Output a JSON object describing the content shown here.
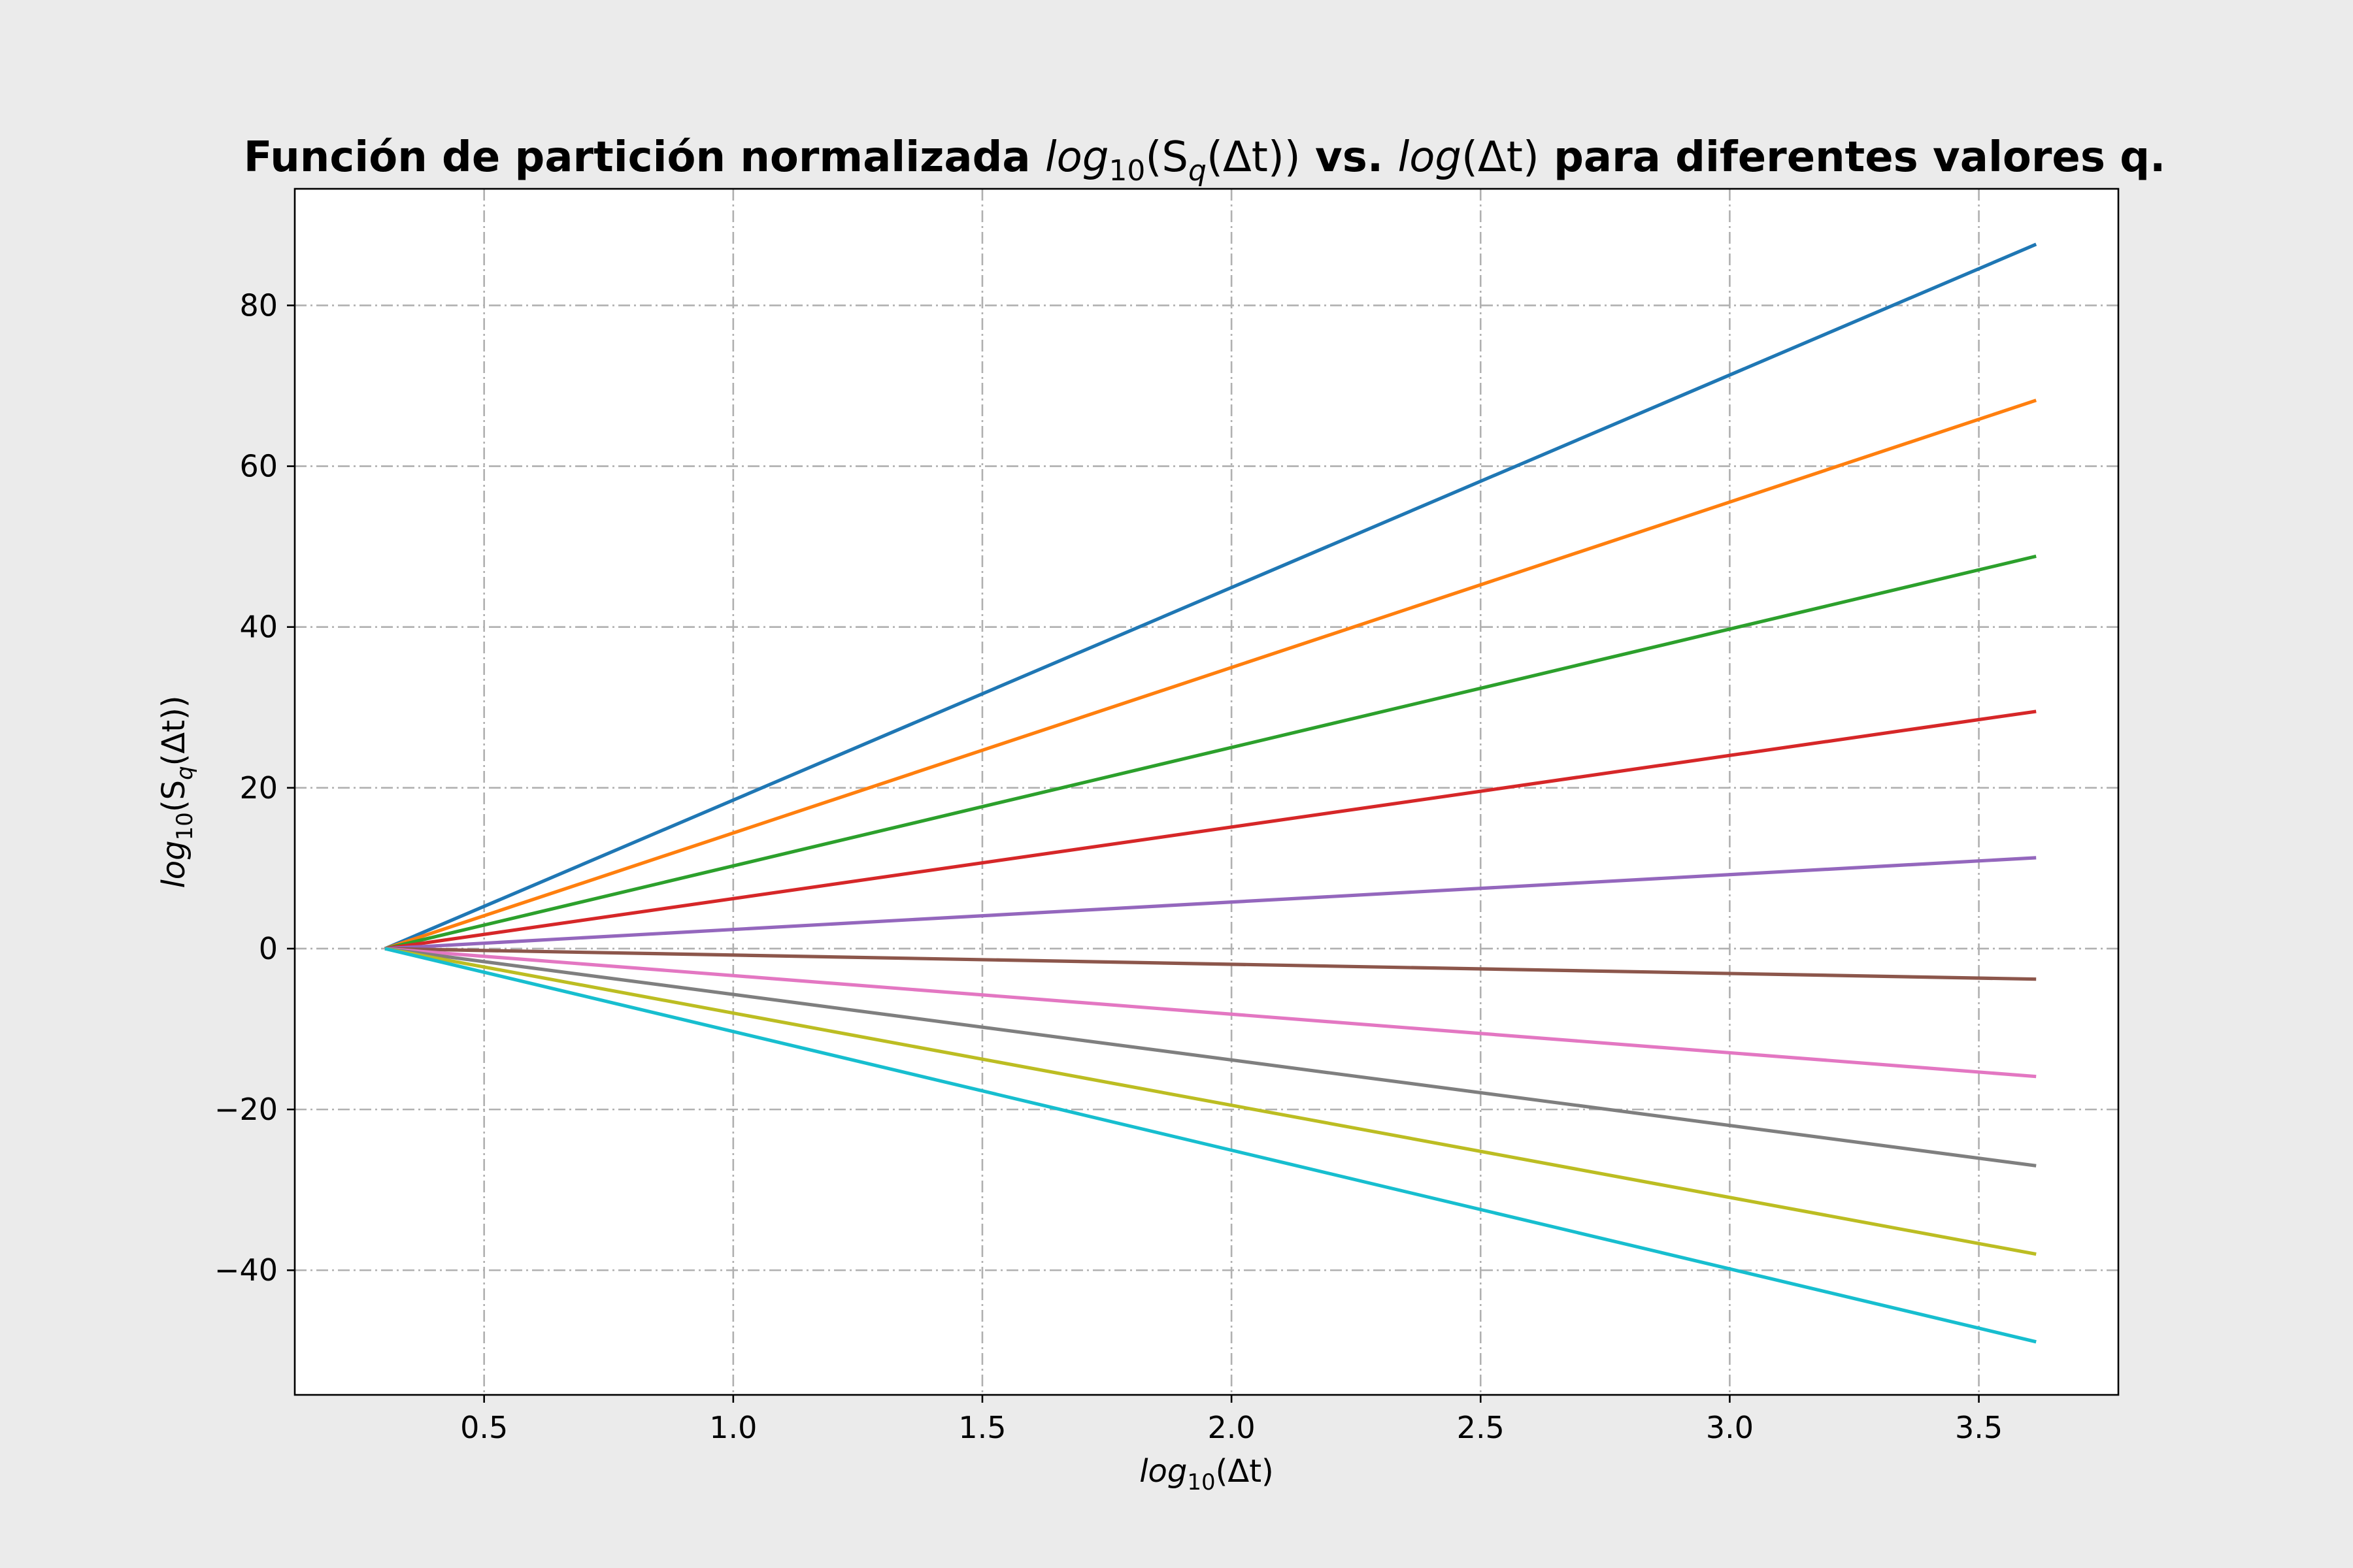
{
  "chart_data": {
    "type": "line",
    "title": {
      "bold_prefix": "Función de partición normalizada ",
      "math_mid": "log",
      "sub1": "10",
      "math_mid2": "(S",
      "sub2": "q",
      "math_mid3": "(Δt))",
      "bold_mid": " vs. ",
      "math_end": "log",
      "math_end2": "(Δt)",
      "bold_suffix": " para diferentes valores q."
    },
    "xlabel": {
      "main": "log",
      "sub": "10",
      "rest": "(Δt)"
    },
    "ylabel": {
      "main": "log",
      "sub1": "10",
      "mid": "(S",
      "sub2": "q",
      "rest": "(Δt))"
    },
    "xlim": [
      0.12,
      3.78
    ],
    "ylim": [
      -55.5,
      94.5
    ],
    "xticks": [
      0.5,
      1.0,
      1.5,
      2.0,
      2.5,
      3.0,
      3.5
    ],
    "xtick_labels": [
      "0.5",
      "1.0",
      "1.5",
      "2.0",
      "2.5",
      "3.0",
      "3.5"
    ],
    "yticks": [
      -40,
      -20,
      0,
      20,
      40,
      60,
      80
    ],
    "ytick_labels": [
      "−40",
      "−20",
      "0",
      "20",
      "40",
      "60",
      "80"
    ],
    "grid": true,
    "series": [
      {
        "color": "#1f77b4",
        "x": [
          0.301,
          3.615
        ],
        "y": [
          0,
          87.6
        ]
      },
      {
        "color": "#ff7f0e",
        "x": [
          0.301,
          3.615
        ],
        "y": [
          0,
          68.2
        ]
      },
      {
        "color": "#2ca02c",
        "x": [
          0.301,
          3.615
        ],
        "y": [
          0,
          48.8
        ]
      },
      {
        "color": "#d62728",
        "x": [
          0.301,
          3.615
        ],
        "y": [
          0,
          29.5
        ]
      },
      {
        "color": "#9467bd",
        "x": [
          0.301,
          3.615
        ],
        "y": [
          0,
          11.3
        ]
      },
      {
        "color": "#8c564b",
        "x": [
          0.301,
          3.615
        ],
        "y": [
          0,
          -3.8
        ]
      },
      {
        "color": "#e377c2",
        "x": [
          0.301,
          3.615
        ],
        "y": [
          0,
          -15.9
        ]
      },
      {
        "color": "#7f7f7f",
        "x": [
          0.301,
          3.615
        ],
        "y": [
          0,
          -27.0
        ]
      },
      {
        "color": "#bcbd22",
        "x": [
          0.301,
          3.615
        ],
        "y": [
          0,
          -38.0
        ]
      },
      {
        "color": "#17becf",
        "x": [
          0.301,
          3.615
        ],
        "y": [
          0,
          -48.9
        ]
      }
    ]
  }
}
